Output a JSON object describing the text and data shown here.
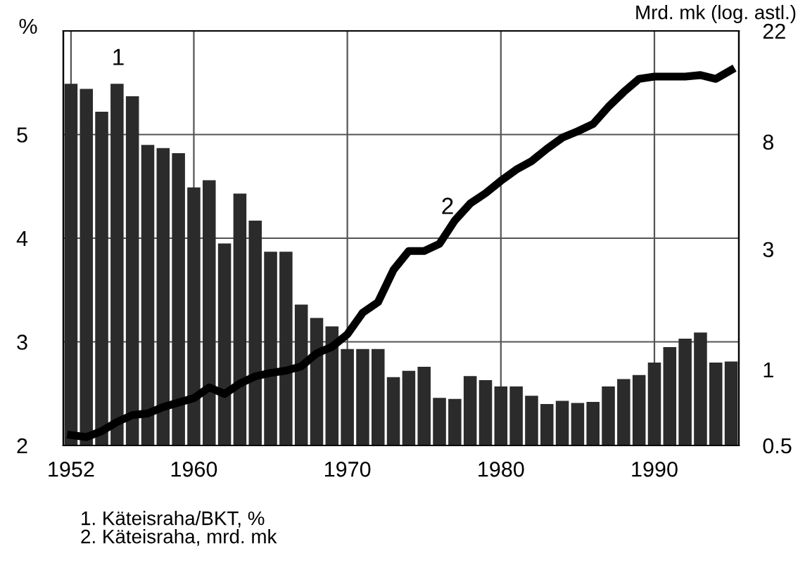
{
  "chart_data": {
    "type": "bar",
    "ylabel": "%",
    "y2label": "Mrd. mk (log. astl.)",
    "x": [
      1952,
      1953,
      1954,
      1955,
      1956,
      1957,
      1958,
      1959,
      1960,
      1961,
      1962,
      1963,
      1964,
      1965,
      1966,
      1967,
      1968,
      1969,
      1970,
      1971,
      1972,
      1973,
      1974,
      1975,
      1976,
      1977,
      1978,
      1979,
      1980,
      1981,
      1982,
      1983,
      1984,
      1985,
      1986,
      1987,
      1988,
      1989,
      1990,
      1991,
      1992,
      1993,
      1994,
      1995
    ],
    "xlim": [
      1951.5,
      1995.5
    ],
    "xticks": [
      1952,
      1960,
      1970,
      1980,
      1990
    ],
    "ylim": [
      2,
      6
    ],
    "yticks": [
      2,
      3,
      4,
      5
    ],
    "y2lim": [
      0.5,
      22
    ],
    "y2ticks": [
      0.5,
      1,
      3,
      8,
      22
    ],
    "log": "y2",
    "grid": true,
    "legend": false,
    "series": [
      {
        "color": "#2b2b2b",
        "values": [
          5.49,
          5.44,
          5.22,
          5.49,
          5.37,
          4.9,
          4.87,
          4.82,
          4.49,
          4.56,
          3.95,
          4.43,
          4.17,
          3.87,
          3.87,
          3.36,
          3.23,
          3.15,
          2.93,
          2.93,
          2.93,
          2.66,
          2.72,
          2.76,
          2.46,
          2.45,
          2.67,
          2.63,
          2.57,
          2.57,
          2.48,
          2.4,
          2.43,
          2.41,
          2.42,
          2.57,
          2.64,
          2.68,
          2.8,
          2.95,
          3.03,
          3.09,
          2.8,
          2.81
        ]
      },
      {
        "type": "line",
        "axis": "y2",
        "color": "#000000",
        "values": [
          0.55,
          0.54,
          0.57,
          0.62,
          0.66,
          0.67,
          0.71,
          0.74,
          0.77,
          0.85,
          0.8,
          0.88,
          0.94,
          0.97,
          0.99,
          1.03,
          1.16,
          1.23,
          1.38,
          1.68,
          1.85,
          2.48,
          2.95,
          2.95,
          3.15,
          3.9,
          4.55,
          5.0,
          5.6,
          6.2,
          6.7,
          7.5,
          8.3,
          8.8,
          9.4,
          11.0,
          12.6,
          14.2,
          14.5,
          14.5,
          14.5,
          14.7,
          14.2,
          15.4
        ]
      }
    ],
    "annotations": [
      "1",
      "2",
      "1. Käteisraha/BKT, %",
      "2. Käteisraha, mrd. mk"
    ]
  }
}
